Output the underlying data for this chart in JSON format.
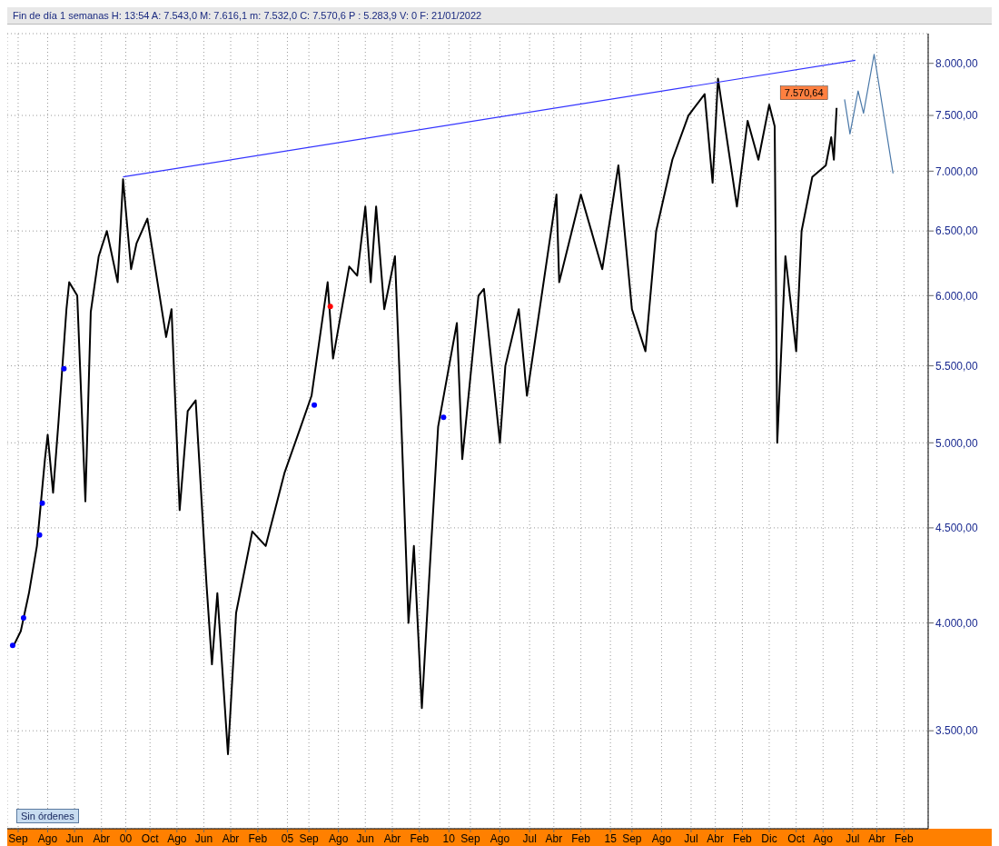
{
  "chart_data": {
    "type": "line",
    "title": "Fin de día 1 semanas  H: 13:54  A: 7.543,0  M: 7.616,1  m: 7.532,0  C: 7.570,6  P : 5.283,9  V: 0  F: 21/01/2022",
    "xlim": [
      "1996-05",
      "2024-11"
    ],
    "xticks": [
      {
        "value": "1996-09",
        "label": "Sep"
      },
      {
        "value": "1997-08",
        "label": "Ago"
      },
      {
        "value": "1998-06",
        "label": "Jun"
      },
      {
        "value": "1999-04",
        "label": "Abr"
      },
      {
        "value": "2000-01",
        "label": "00"
      },
      {
        "value": "2000-10",
        "label": "Oct"
      },
      {
        "value": "2001-08",
        "label": "Ago"
      },
      {
        "value": "2002-06",
        "label": "Jun"
      },
      {
        "value": "2003-04",
        "label": "Abr"
      },
      {
        "value": "2004-02",
        "label": "Feb"
      },
      {
        "value": "2005-01",
        "label": "05"
      },
      {
        "value": "2005-09",
        "label": "Sep"
      },
      {
        "value": "2006-08",
        "label": "Ago"
      },
      {
        "value": "2007-06",
        "label": "Jun"
      },
      {
        "value": "2008-04",
        "label": "Abr"
      },
      {
        "value": "2009-02",
        "label": "Feb"
      },
      {
        "value": "2010-01",
        "label": "10"
      },
      {
        "value": "2010-09",
        "label": "Sep"
      },
      {
        "value": "2011-08",
        "label": "Ago"
      },
      {
        "value": "2012-07",
        "label": "Jul"
      },
      {
        "value": "2013-04",
        "label": "Abr"
      },
      {
        "value": "2014-02",
        "label": "Feb"
      },
      {
        "value": "2015-01",
        "label": "15"
      },
      {
        "value": "2015-09",
        "label": "Sep"
      },
      {
        "value": "2016-08",
        "label": "Ago"
      },
      {
        "value": "2017-07",
        "label": "Jul"
      },
      {
        "value": "2018-04",
        "label": "Abr"
      },
      {
        "value": "2019-02",
        "label": "Feb"
      },
      {
        "value": "2019-12",
        "label": "Dic"
      },
      {
        "value": "2020-10",
        "label": "Oct"
      },
      {
        "value": "2021-08",
        "label": "Ago"
      },
      {
        "value": "2022-07",
        "label": "Jul"
      },
      {
        "value": "2023-04",
        "label": "Abr"
      },
      {
        "value": "2024-02",
        "label": "Feb"
      }
    ],
    "ylim": [
      3100,
      8300
    ],
    "log": "y",
    "yticks": [
      {
        "value": 3500,
        "label": "3.500,00"
      },
      {
        "value": 4000,
        "label": "4.000,00"
      },
      {
        "value": 4500,
        "label": "4.500,00"
      },
      {
        "value": 5000,
        "label": "5.000,00"
      },
      {
        "value": 5500,
        "label": "5.500,00"
      },
      {
        "value": 6000,
        "label": "6.000,00"
      },
      {
        "value": 6500,
        "label": "6.500,00"
      },
      {
        "value": 7000,
        "label": "7.000,00"
      },
      {
        "value": 7500,
        "label": "7.500,00"
      },
      {
        "value": 8000,
        "label": "8.000,00"
      }
    ],
    "grid": true,
    "series": [
      {
        "color": "#000000",
        "x": [
          "1996-07",
          "1996-10",
          "1997-01",
          "1997-04",
          "1997-07",
          "1997-08",
          "1997-10",
          "1997-12",
          "1998-03",
          "1998-04",
          "1998-07",
          "1998-10",
          "1998-12",
          "1999-03",
          "1999-06",
          "1999-10",
          "1999-12",
          "2000-03",
          "2000-05",
          "2000-09",
          "2000-12",
          "2001-04",
          "2001-06",
          "2001-09",
          "2001-12",
          "2002-03",
          "2002-07",
          "2002-09",
          "2002-11",
          "2003-03",
          "2003-06",
          "2003-12",
          "2004-05",
          "2004-12",
          "2005-06",
          "2005-10",
          "2006-04",
          "2006-06",
          "2006-12",
          "2007-03",
          "2007-06",
          "2007-08",
          "2007-10",
          "2008-01",
          "2008-05",
          "2008-07",
          "2008-10",
          "2008-12",
          "2009-03",
          "2009-06",
          "2009-09",
          "2010-04",
          "2010-06",
          "2010-12",
          "2011-02",
          "2011-08",
          "2011-10",
          "2012-03",
          "2012-06",
          "2013-05",
          "2013-06",
          "2014-02",
          "2014-10",
          "2015-04",
          "2015-09",
          "2016-02",
          "2016-06",
          "2016-12",
          "2017-06",
          "2017-12",
          "2018-03",
          "2018-05",
          "2018-12",
          "2019-04",
          "2019-08",
          "2019-12",
          "2020-02",
          "2020-03",
          "2020-06",
          "2020-10",
          "2020-12",
          "2021-04",
          "2021-09",
          "2021-11",
          "2021-12",
          "2022-01"
        ],
        "values": [
          3880,
          3960,
          4150,
          4400,
          4900,
          5050,
          4700,
          5130,
          5900,
          6100,
          6000,
          4650,
          5880,
          6300,
          6500,
          6100,
          6930,
          6200,
          6400,
          6600,
          6200,
          5700,
          5900,
          4600,
          5200,
          5270,
          4200,
          3800,
          4150,
          3400,
          4050,
          4480,
          4400,
          4820,
          5100,
          5300,
          6100,
          5550,
          6220,
          6150,
          6700,
          6100,
          6700,
          5900,
          6300,
          5300,
          4000,
          4400,
          3600,
          4300,
          5100,
          5800,
          4900,
          6000,
          6050,
          5000,
          5500,
          5900,
          5300,
          6800,
          6100,
          6800,
          6200,
          7050,
          5900,
          5600,
          6500,
          7100,
          7500,
          7700,
          6900,
          7850,
          6700,
          7450,
          7100,
          7600,
          7400,
          5000,
          6300,
          5600,
          6500,
          6950,
          7050,
          7300,
          7100,
          7570
        ]
      },
      {
        "color": "#3333ff",
        "x": [
          "1999-12",
          "2022-08"
        ],
        "values": [
          6950,
          8030
        ]
      },
      {
        "color": "#4a78a8",
        "x": [
          "2022-04",
          "2022-06",
          "2022-09",
          "2022-11",
          "2023-03",
          "2023-10"
        ],
        "values": [
          7650,
          7330,
          7730,
          7520,
          8090,
          6980
        ]
      },
      {
        "type": "scatter",
        "color": "#0000ff",
        "x": [
          "1996-07",
          "1996-11",
          "1997-05",
          "1997-06",
          "1998-02",
          "2005-11",
          "2009-11"
        ],
        "values": [
          3890,
          4025,
          4460,
          4640,
          5480,
          5240,
          5160
        ]
      },
      {
        "type": "scatter",
        "color": "#ff0000",
        "x": [
          "2006-05"
        ],
        "values": [
          5920
        ]
      }
    ],
    "annotations": [
      "Sin órdenes",
      {
        "text": "7.570,64",
        "x": "2022-01",
        "y": 7570.64
      }
    ]
  }
}
